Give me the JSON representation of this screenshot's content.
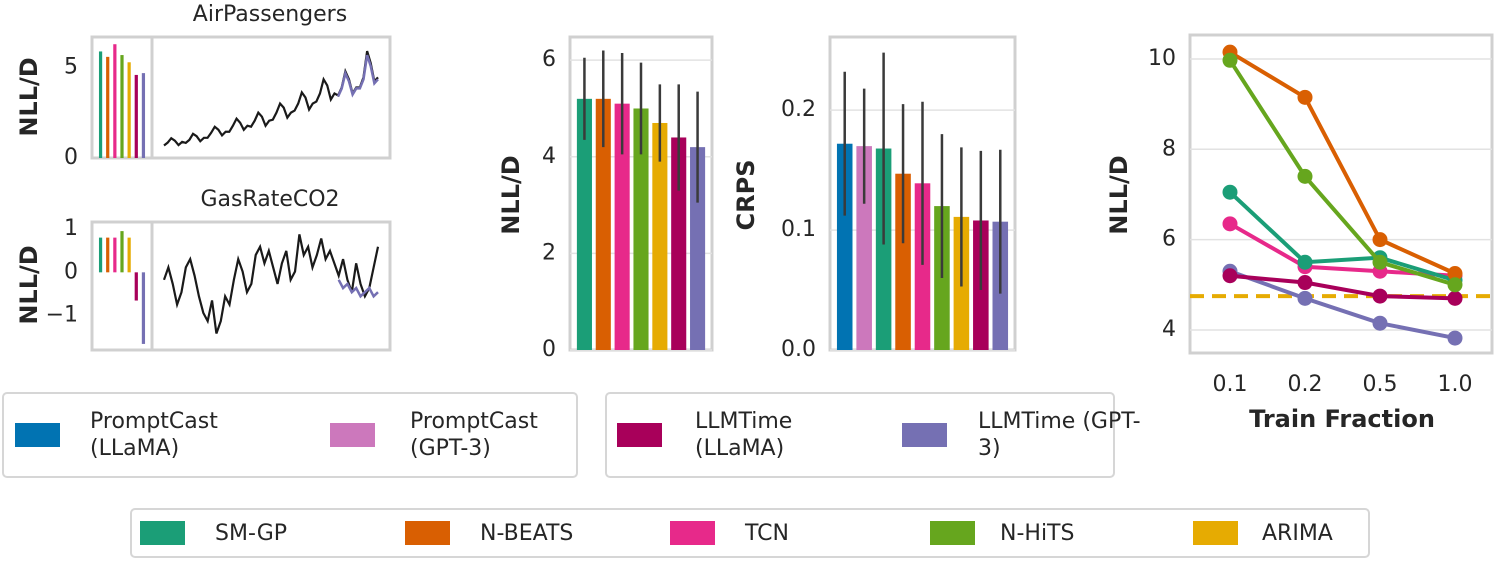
{
  "chart_data": [
    {
      "type": "bar",
      "title": "AirPassengers",
      "ylabel": "NLL/D",
      "ylim": [
        0,
        6.7
      ],
      "yticks": [
        0,
        5
      ],
      "grid": false,
      "values": [
        5.9,
        5.6,
        6.3,
        5.7,
        5.3,
        4.6,
        4.7
      ],
      "colors": [
        "#1b9e77",
        "#d95f02",
        "#e7298a",
        "#66a61e",
        "#e6ab02",
        "#a8005a",
        "#7570b3"
      ]
    },
    {
      "type": "line",
      "ylim": [
        50,
        650
      ],
      "series": [
        {
          "color": "#1a1a1a",
          "values": [
            112,
            126,
            148,
            136,
            114,
            130,
            125,
            140,
            170,
            158,
            133,
            150,
            150,
            175,
            205,
            190,
            162,
            180,
            180,
            210,
            245,
            225,
            190,
            210,
            205,
            235,
            275,
            255,
            210,
            235,
            240,
            275,
            320,
            300,
            250,
            275,
            285,
            320,
            375,
            350,
            290,
            320,
            330,
            370,
            440,
            410,
            340,
            370,
            360,
            400,
            480,
            440,
            370,
            400,
            400,
            450,
            580,
            520,
            430,
            450
          ]
        },
        {
          "color": "#7570b3",
          "values": [
            null,
            null,
            null,
            null,
            null,
            null,
            null,
            null,
            null,
            null,
            null,
            null,
            null,
            null,
            null,
            null,
            null,
            null,
            null,
            null,
            null,
            null,
            null,
            null,
            null,
            null,
            null,
            null,
            null,
            null,
            null,
            null,
            null,
            null,
            null,
            null,
            null,
            null,
            null,
            null,
            null,
            null,
            null,
            null,
            null,
            null,
            null,
            null,
            355,
            395,
            470,
            430,
            365,
            395,
            395,
            440,
            560,
            505,
            420,
            440
          ]
        }
      ]
    },
    {
      "type": "bar",
      "title": "GasRateCO2",
      "ylabel": "NLL/D",
      "ylim": [
        -1.79,
        1.16
      ],
      "yticks": [
        {
          "value": -1,
          "label": "−1"
        },
        0,
        1
      ],
      "grid": false,
      "values": [
        0.8,
        0.8,
        0.8,
        0.95,
        0.8,
        -0.65,
        -1.65
      ],
      "colors": [
        "#1b9e77",
        "#d95f02",
        "#e7298a",
        "#66a61e",
        "#e6ab02",
        "#a8005a",
        "#7570b3"
      ]
    },
    {
      "type": "line",
      "ylim": [
        -1.9,
        1.2
      ],
      "series": [
        {
          "color": "#1a1a1a",
          "values": [
            -0.2,
            0.1,
            -0.3,
            -0.8,
            -0.5,
            0.1,
            0.3,
            -0.1,
            -0.6,
            -1.0,
            -1.2,
            -0.7,
            -1.5,
            -1.2,
            -0.6,
            -0.8,
            -0.2,
            0.3,
            0.0,
            -0.5,
            -0.3,
            0.4,
            0.6,
            0.2,
            0.5,
            0.1,
            -0.3,
            0.2,
            0.5,
            -0.2,
            0.0,
            0.9,
            0.4,
            0.6,
            0.1,
            0.4,
            0.8,
            0.3,
            0.5,
            0.2,
            -0.1,
            0.3,
            -0.2,
            -0.5,
            0.2,
            -0.3,
            -0.6,
            -0.4,
            0.1,
            0.6
          ]
        },
        {
          "color": "#7570b3",
          "values": [
            null,
            null,
            null,
            null,
            null,
            null,
            null,
            null,
            null,
            null,
            null,
            null,
            null,
            null,
            null,
            null,
            null,
            null,
            null,
            null,
            null,
            null,
            null,
            null,
            null,
            null,
            null,
            null,
            null,
            null,
            null,
            null,
            null,
            null,
            null,
            null,
            null,
            null,
            null,
            null,
            -0.2,
            -0.4,
            -0.3,
            -0.5,
            -0.4,
            -0.6,
            -0.5,
            -0.4,
            -0.6,
            -0.5
          ]
        }
      ]
    },
    {
      "type": "bar",
      "ylabel": "NLL/D",
      "ylim": [
        0,
        6.48
      ],
      "yticks": [
        0,
        2,
        4,
        6
      ],
      "grid": true,
      "values": [
        5.2,
        5.2,
        5.1,
        5.0,
        4.7,
        4.4,
        4.2
      ],
      "errors": [
        0.85,
        1.0,
        1.05,
        0.95,
        0.8,
        1.1,
        1.15
      ],
      "colors": [
        "#1b9e77",
        "#d95f02",
        "#e7298a",
        "#66a61e",
        "#e6ab02",
        "#a8005a",
        "#7570b3"
      ]
    },
    {
      "type": "bar",
      "ylabel": "CRPS",
      "ylim": [
        0,
        0.261
      ],
      "yticks": [
        {
          "value": 0,
          "label": "0.0"
        },
        0.1,
        0.2
      ],
      "grid": true,
      "values": [
        0.172,
        0.17,
        0.168,
        0.147,
        0.139,
        0.12,
        0.111,
        0.108,
        0.107
      ],
      "errors": [
        0.06,
        0.048,
        0.08,
        0.058,
        0.068,
        0.06,
        0.058,
        0.058,
        0.06
      ],
      "colors": [
        "#0173b2",
        "#cc78bc",
        "#1b9e77",
        "#d95f02",
        "#e7298a",
        "#66a61e",
        "#e6ab02",
        "#a8005a",
        "#7570b3"
      ]
    },
    {
      "type": "line",
      "ylabel": "NLL/D",
      "xlabel": "Train Fraction",
      "ylim": [
        3.49,
        10.53
      ],
      "yticks": [
        4,
        6,
        8,
        10
      ],
      "grid": true,
      "categories": [
        "0.1",
        "0.2",
        "0.5",
        "1.0"
      ],
      "series": [
        {
          "color": "#7570b3",
          "values": [
            5.3,
            4.7,
            4.15,
            3.82
          ]
        },
        {
          "color": "#a8005a",
          "values": [
            5.2,
            5.05,
            4.75,
            4.7
          ]
        },
        {
          "color": "#e7298a",
          "values": [
            6.35,
            5.4,
            5.3,
            5.2
          ]
        },
        {
          "color": "#1b9e77",
          "values": [
            7.05,
            5.5,
            5.6,
            5.1
          ]
        },
        {
          "color": "#d95f02",
          "values": [
            10.15,
            9.15,
            6.0,
            5.25
          ]
        },
        {
          "color": "#66a61e",
          "values": [
            9.97,
            7.4,
            5.5,
            5.0
          ]
        }
      ],
      "reference_line": {
        "value": 4.75,
        "color": "#e6ab02"
      }
    }
  ],
  "legends": [
    [
      {
        "name": "PromptCast (LLaMA)",
        "color": "#0173b2"
      },
      {
        "name": "PromptCast (GPT-3)",
        "color": "#cc78bc"
      }
    ],
    [
      {
        "name": "LLMTime (LLaMA)",
        "color": "#a8005a"
      },
      {
        "name": "LLMTime (GPT-3)",
        "color": "#7570b3"
      }
    ],
    [
      {
        "name": "SM-GP",
        "color": "#1b9e77"
      },
      {
        "name": "N-BEATS",
        "color": "#d95f02"
      },
      {
        "name": "TCN",
        "color": "#e7298a"
      },
      {
        "name": "N-HiTS",
        "color": "#66a61e"
      },
      {
        "name": "ARIMA",
        "color": "#e6ab02"
      }
    ]
  ]
}
